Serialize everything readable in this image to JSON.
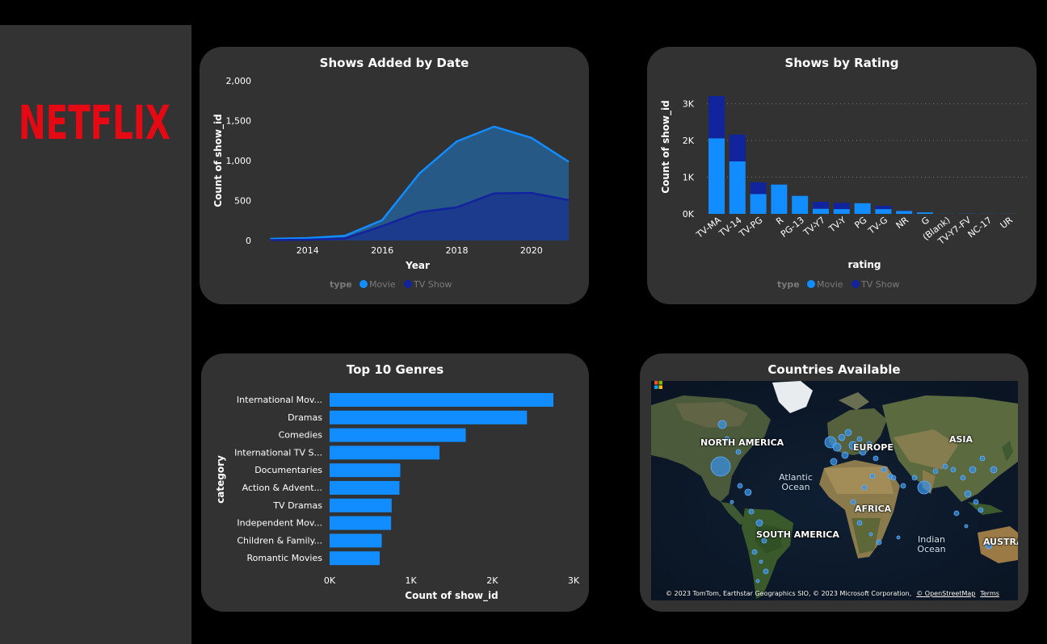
{
  "sidebar": {
    "logo_text": "NETFLIX",
    "logo_color": "#e50914"
  },
  "legend_title": "type",
  "colors": {
    "movie": "#118dff",
    "tv_show": "#12239e",
    "card_bg": "#323232",
    "sidebar_bg": "#333333"
  },
  "charts": {
    "added": {
      "title": "Shows Added by Date",
      "chart_data": {
        "type": "area",
        "title": "Shows Added by Date",
        "xlabel": "Year",
        "ylabel": "Count of show_id",
        "x": [
          2013,
          2014,
          2015,
          2016,
          2017,
          2018,
          2019,
          2020,
          2021
        ],
        "xticks": [
          "2014",
          "2016",
          "2018",
          "2020"
        ],
        "yticks": [
          "0",
          "500",
          "1,000",
          "1,500",
          "2,000"
        ],
        "ylim": [
          0,
          2000
        ],
        "series": [
          {
            "name": "Movie",
            "values": [
              20,
              30,
              60,
              255,
              840,
              1240,
              1425,
              1285,
              985
            ]
          },
          {
            "name": "TV Show",
            "values": [
              5,
              10,
              25,
              180,
              355,
              415,
              590,
              595,
              505
            ]
          }
        ],
        "legend": "bottom"
      }
    },
    "rating": {
      "title": "Shows by Rating",
      "chart_data": {
        "type": "bar",
        "stacked": true,
        "title": "Shows by Rating",
        "xlabel": "rating",
        "ylabel": "Count of show_id",
        "categories": [
          "TV-MA",
          "TV-14",
          "TV-PG",
          "R",
          "PG-13",
          "TV-Y7",
          "TV-Y",
          "PG",
          "TV-G",
          "NR",
          "G",
          "(Blank)",
          "TV-Y7-FV",
          "NC-17",
          "UR"
        ],
        "series": [
          {
            "name": "Movie",
            "values": [
              2060,
              1430,
              540,
              800,
              490,
              140,
              130,
              290,
              130,
              80,
              40,
              3,
              5,
              3,
              3
            ]
          },
          {
            "name": "TV Show",
            "values": [
              1150,
              730,
              320,
              2,
              0,
              190,
              170,
              0,
              90,
              5,
              0,
              1,
              1,
              0,
              0
            ]
          }
        ],
        "yticks": [
          "0K",
          "1K",
          "2K",
          "3K"
        ],
        "ylim": [
          0,
          3300
        ],
        "grid": true,
        "legend": "bottom"
      }
    },
    "genres": {
      "title": "Top 10 Genres",
      "chart_data": {
        "type": "bar",
        "orientation": "horizontal",
        "title": "Top 10 Genres",
        "xlabel": "Count of show_id",
        "ylabel": "category",
        "categories": [
          "International Mov...",
          "Dramas",
          "Comedies",
          "International TV S...",
          "Documentaries",
          "Action & Advent...",
          "TV Dramas",
          "Independent Mov...",
          "Children & Family...",
          "Romantic Movies"
        ],
        "values": [
          2752,
          2427,
          1674,
          1351,
          869,
          859,
          763,
          756,
          641,
          616
        ],
        "xticks": [
          "0K",
          "1K",
          "2K",
          "3K"
        ],
        "xlim": [
          0,
          3000
        ]
      }
    },
    "countries": {
      "title": "Countries Available",
      "labels": [
        "NORTH AMERICA",
        "EUROPE",
        "ASIA",
        "AFRICA",
        "SOUTH AMERICA",
        "AUSTRA"
      ],
      "oceans": [
        "Atlantic Ocean",
        "Indian Ocean"
      ],
      "credit": "© 2023 TomTom, Earthstar Geographics SIO, © 2023 Microsoft Corporation,",
      "credit_link1": "© OpenStreetMap",
      "credit_link2": "Terms"
    }
  }
}
